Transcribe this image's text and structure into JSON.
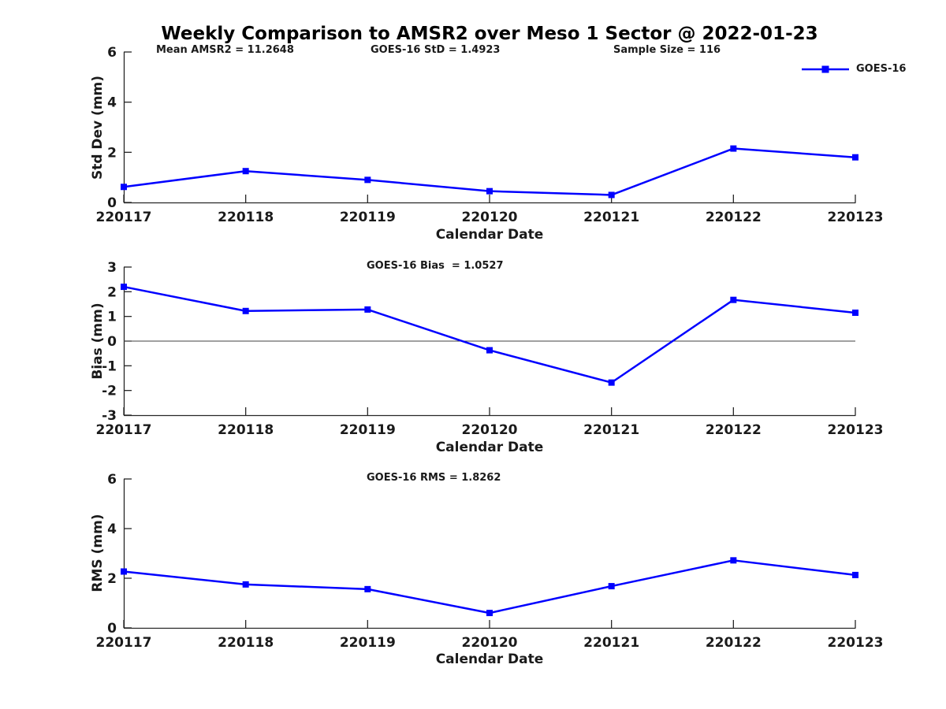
{
  "title": "Weekly Comparison to AMSR2 over Meso 1 Sector @ 2022-01-23",
  "legend": {
    "label": "GOES-16"
  },
  "colors": {
    "line": "#0000ff",
    "axis": "#262626",
    "text": "#1a1a1a",
    "zero_line": "#404040",
    "background": "#ffffff"
  },
  "chart_data": [
    {
      "type": "line",
      "name": "std-dev",
      "ylabel": "Std Dev (mm)",
      "xlabel": "Calendar Date",
      "ylim": [
        0,
        6
      ],
      "yticks": [
        0,
        2,
        4,
        6
      ],
      "categories": [
        "220117",
        "220118",
        "220119",
        "220120",
        "220121",
        "220122",
        "220123"
      ],
      "series": [
        {
          "name": "GOES-16",
          "values": [
            0.62,
            1.25,
            0.9,
            0.45,
            0.3,
            2.15,
            1.8
          ]
        }
      ],
      "annotations": [
        "Mean AMSR2 = 11.2648",
        "GOES-16 StD = 1.4923",
        "Sample Size = 116"
      ],
      "legend_position": "top-right",
      "grid": false,
      "zero_line": false
    },
    {
      "type": "line",
      "name": "bias",
      "ylabel": "Bias (mm)",
      "xlabel": "Calendar Date",
      "ylim": [
        -3,
        3
      ],
      "yticks": [
        -3,
        -2,
        -1,
        0,
        1,
        2,
        3
      ],
      "categories": [
        "220117",
        "220118",
        "220119",
        "220120",
        "220121",
        "220122",
        "220123"
      ],
      "series": [
        {
          "name": "GOES-16",
          "values": [
            2.2,
            1.22,
            1.28,
            -0.37,
            -1.68,
            1.67,
            1.15
          ]
        }
      ],
      "annotations": [
        "GOES-16 Bias  = 1.0527"
      ],
      "grid": false,
      "zero_line": true
    },
    {
      "type": "line",
      "name": "rms",
      "ylabel": "RMS (mm)",
      "xlabel": "Calendar Date",
      "ylim": [
        0,
        6
      ],
      "yticks": [
        0,
        2,
        4,
        6
      ],
      "categories": [
        "220117",
        "220118",
        "220119",
        "220120",
        "220121",
        "220122",
        "220123"
      ],
      "series": [
        {
          "name": "GOES-16",
          "values": [
            2.27,
            1.75,
            1.56,
            0.6,
            1.68,
            2.72,
            2.13
          ]
        }
      ],
      "annotations": [
        "GOES-16 RMS = 1.8262"
      ],
      "grid": false,
      "zero_line": false
    }
  ]
}
